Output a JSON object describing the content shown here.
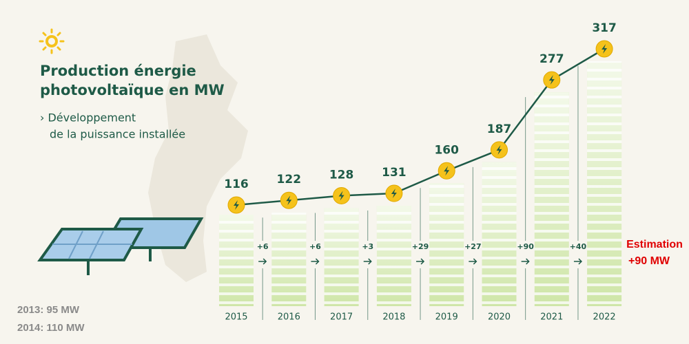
{
  "chart_data": {
    "type": "line",
    "title_lines": [
      "Production énergie",
      "photovoltaïque en MW"
    ],
    "subtitle_lines": [
      "› Développement",
      "de la puissance installée"
    ],
    "categories": [
      "2015",
      "2016",
      "2017",
      "2018",
      "2019",
      "2020",
      "2021",
      "2022"
    ],
    "values": [
      116,
      122,
      128,
      131,
      160,
      187,
      277,
      317
    ],
    "increments": [
      "+6",
      "+6",
      "+3",
      "+29",
      "+27",
      "+90",
      "+40"
    ],
    "estimation_lines": [
      "Estimation",
      "+90 MW"
    ],
    "notes": [
      "2013: 95 MW",
      "2014: 110 MW"
    ],
    "color": "#1e5a47",
    "marker_color": "#f5c21b"
  }
}
